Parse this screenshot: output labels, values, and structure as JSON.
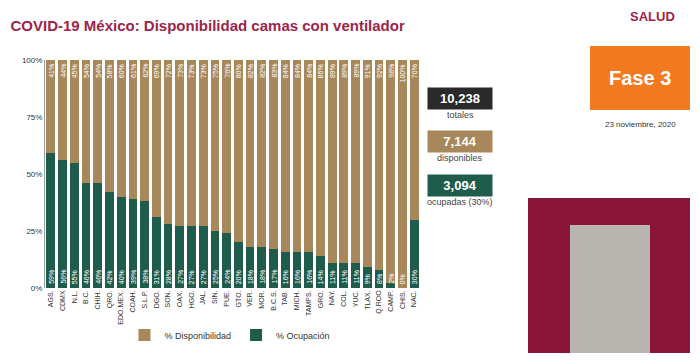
{
  "chart_data": {
    "type": "bar",
    "title": "COVID-19 México: Disponibilidad camas con ventilador",
    "categories": [
      "AGS.",
      "CDMX",
      "N.L.",
      "B.C.",
      "CHIH.",
      "QRO.",
      "EDO.MEX.",
      "COAH.",
      "S.L.P.",
      "DGO.",
      "SON.",
      "OAX.",
      "HGO.",
      "JAL.",
      "SIN.",
      "PUE.",
      "GTO.",
      "VER.",
      "MOR.",
      "B.C.S.",
      "TAB.",
      "MICH.",
      "TAMPS.",
      "GRO.",
      "NAY.",
      "COL.",
      "YUC.",
      "TLAX.",
      "Q.ROO",
      "CAMP.",
      "CHIS.",
      "NAC."
    ],
    "series": [
      {
        "name": "% Ocupación",
        "color": "#1f5c4c",
        "values": [
          59,
          56,
          55,
          46,
          46,
          42,
          40,
          39,
          38,
          31,
          28,
          27,
          27,
          27,
          25,
          24,
          20,
          18,
          18,
          17,
          16,
          16,
          16,
          14,
          11,
          11,
          11,
          9,
          8,
          2,
          0,
          30
        ],
        "value_labels": [
          "59%",
          "56%",
          "55%",
          "46%",
          "46%",
          "42%",
          "40%",
          "39%",
          "38%",
          "31%",
          "28%",
          "27%",
          "27%",
          "27%",
          "25%",
          "24%",
          "20%",
          "18%",
          "18%",
          "17%",
          "16%",
          "16%",
          "16%",
          "14%",
          "11%",
          "11%",
          "11%",
          "9%",
          "8%",
          "2%",
          "0%",
          "30%"
        ]
      },
      {
        "name": "% Disponibilidad",
        "color": "#a8875a",
        "values": [
          41,
          44,
          45,
          54,
          54,
          58,
          60,
          61,
          62,
          69,
          72,
          73,
          73,
          73,
          75,
          76,
          80,
          82,
          82,
          83,
          84,
          84,
          84,
          86,
          89,
          89,
          89,
          91,
          92,
          98,
          100,
          70
        ],
        "value_labels": [
          "41%",
          "44%",
          "45%",
          "54%",
          "54%",
          "58%",
          "60%",
          "61%",
          "62%",
          "69%",
          "72%",
          "73%",
          "73%",
          "73%",
          "75%",
          "76%",
          "80%",
          "82%",
          "82%",
          "83%",
          "84%",
          "84%",
          "84%",
          "86%",
          "89%",
          "89%",
          "89%",
          "91%",
          "92%",
          "98%",
          "100%",
          "70%"
        ]
      }
    ],
    "ylim": [
      0,
      100
    ],
    "yticks": [
      {
        "value": 0,
        "label": "0%"
      },
      {
        "value": 25,
        "label": "25%"
      },
      {
        "value": 50,
        "label": "50%"
      },
      {
        "value": 75,
        "label": "75%"
      },
      {
        "value": 100,
        "label": "100%"
      }
    ],
    "stacked": true,
    "data_labels": true,
    "grid": false,
    "legend": "bottom",
    "annotations": [
      "10,238",
      "totales",
      "7,144",
      "disponibles",
      "3,094",
      "ocupadas (30%)",
      "Fase 3",
      "23 noviembre, 2020",
      "SALUD"
    ]
  }
}
